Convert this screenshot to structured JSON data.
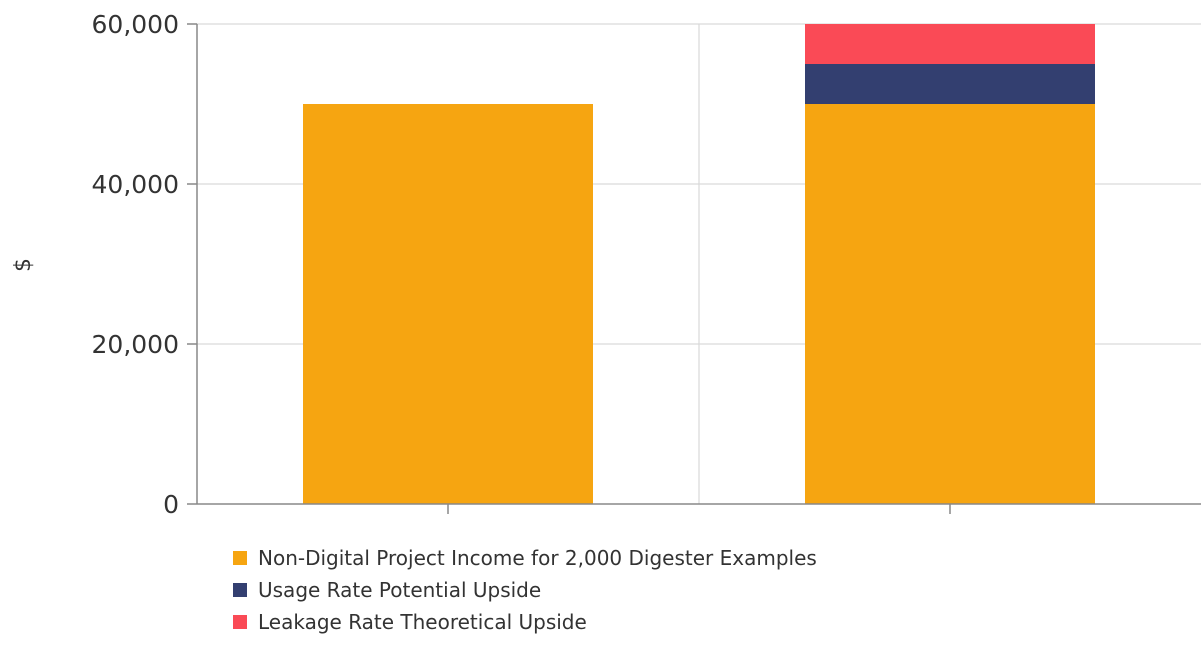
{
  "chart_data": {
    "type": "bar",
    "stacked": true,
    "categories": [
      "",
      ""
    ],
    "series": [
      {
        "name": "Non-Digital Project Income for 2,000 Digester Examples",
        "values": [
          50000,
          50000
        ],
        "color": "#f6a511"
      },
      {
        "name": "Usage Rate Potential Upside",
        "values": [
          0,
          5000
        ],
        "color": "#333f70"
      },
      {
        "name": "Leakage Rate Theoretical Upside",
        "values": [
          0,
          5000
        ],
        "color": "#fa4a56"
      }
    ],
    "title": "",
    "xlabel": "",
    "ylabel": "$",
    "ylim": [
      0,
      60000
    ],
    "yticks": [
      0,
      20000,
      40000,
      60000
    ],
    "ytick_labels": [
      "0",
      "20,000",
      "40,000",
      "60,000"
    ],
    "grid": true,
    "legend_position": "bottom-left"
  }
}
